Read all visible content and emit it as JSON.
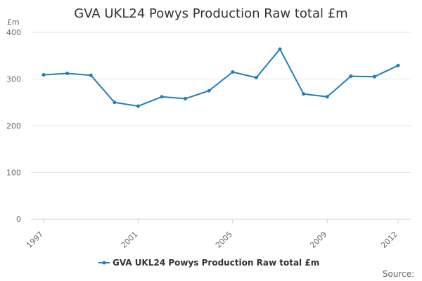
{
  "chart_data": {
    "type": "line",
    "title": "GVA UKL24 Powys Production Raw total £m",
    "ylabel": "£m",
    "xlabel": "",
    "x": [
      1997,
      1998,
      1999,
      2000,
      2001,
      2002,
      2003,
      2004,
      2005,
      2006,
      2007,
      2008,
      2009,
      2010,
      2011,
      2012
    ],
    "x_tick_labels": [
      "1997",
      "2001",
      "2005",
      "2009",
      "2012"
    ],
    "y_tick_labels": [
      "0",
      "100",
      "200",
      "300",
      "400"
    ],
    "ylim": [
      0,
      400
    ],
    "grid": true,
    "legend_position": "bottom",
    "series": [
      {
        "name": "GVA UKL24 Powys Production Raw total £m",
        "color": "#1f7fb8",
        "values": [
          309,
          312,
          308,
          250,
          242,
          262,
          258,
          275,
          315,
          303,
          364,
          268,
          262,
          306,
          305,
          329
        ]
      }
    ]
  },
  "credits": {
    "source_label": "Source:"
  }
}
